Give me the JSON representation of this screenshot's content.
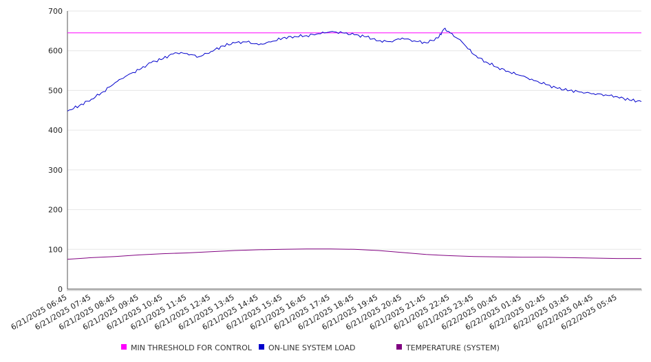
{
  "chart_data": {
    "type": "line",
    "title": "",
    "xlabel": "",
    "ylabel": "",
    "ylim": [
      0,
      700
    ],
    "yticks": [
      0,
      100,
      200,
      300,
      400,
      500,
      600,
      700
    ],
    "grid": true,
    "legend_position": "bottom",
    "x_tick_labels": [
      "6/21/2025 06:45",
      "6/21/2025 07:45",
      "6/21/2025 08:45",
      "6/21/2025 09:45",
      "6/21/2025 10:45",
      "6/21/2025 11:45",
      "6/21/2025 12:45",
      "6/21/2025 13:45",
      "6/21/2025 14:45",
      "6/21/2025 15:45",
      "6/21/2025 16:45",
      "6/21/2025 17:45",
      "6/21/2025 18:45",
      "6/21/2025 19:45",
      "6/21/2025 20:45",
      "6/21/2025 21:45",
      "6/21/2025 22:45",
      "6/21/2025 23:45",
      "6/22/2025 00:45",
      "6/22/2025 01:45",
      "6/22/2025 02:45",
      "6/22/2025 03:45",
      "6/22/2025 04:45",
      "6/22/2025 05:45"
    ],
    "series": [
      {
        "name": "MIN THRESHOLD FOR CONTROL",
        "color": "#ff00ff",
        "x": [
          "6/21/2025 06:45",
          "6/22/2025 06:45"
        ],
        "values": [
          645,
          645
        ]
      },
      {
        "name": "ON-LINE SYSTEM LOAD",
        "color": "#0000cc",
        "x": [
          "6/21/2025 06:45",
          "6/21/2025 07:15",
          "6/21/2025 07:45",
          "6/21/2025 08:15",
          "6/21/2025 08:45",
          "6/21/2025 09:15",
          "6/21/2025 09:45",
          "6/21/2025 10:15",
          "6/21/2025 10:45",
          "6/21/2025 11:15",
          "6/21/2025 11:45",
          "6/21/2025 12:15",
          "6/21/2025 12:45",
          "6/21/2025 13:15",
          "6/21/2025 13:45",
          "6/21/2025 14:15",
          "6/21/2025 14:45",
          "6/21/2025 15:15",
          "6/21/2025 15:45",
          "6/21/2025 16:15",
          "6/21/2025 16:45",
          "6/21/2025 17:15",
          "6/21/2025 17:45",
          "6/21/2025 18:15",
          "6/21/2025 18:45",
          "6/21/2025 19:15",
          "6/21/2025 19:45",
          "6/21/2025 20:15",
          "6/21/2025 20:45",
          "6/21/2025 21:15",
          "6/21/2025 21:45",
          "6/21/2025 22:15",
          "6/21/2025 22:30",
          "6/21/2025 22:45",
          "6/21/2025 23:15",
          "6/21/2025 23:45",
          "6/22/2025 00:15",
          "6/22/2025 00:45",
          "6/22/2025 01:15",
          "6/22/2025 01:45",
          "6/22/2025 02:15",
          "6/22/2025 02:45",
          "6/22/2025 03:15",
          "6/22/2025 03:45",
          "6/22/2025 04:15",
          "6/22/2025 04:45",
          "6/22/2025 05:15",
          "6/22/2025 05:45",
          "6/22/2025 06:15",
          "6/22/2025 06:45"
        ],
        "values": [
          448,
          462,
          478,
          497,
          520,
          538,
          552,
          570,
          580,
          595,
          593,
          585,
          598,
          612,
          620,
          622,
          615,
          622,
          632,
          636,
          638,
          643,
          648,
          645,
          640,
          635,
          625,
          623,
          632,
          625,
          620,
          632,
          655,
          645,
          622,
          590,
          572,
          558,
          546,
          537,
          525,
          515,
          505,
          500,
          496,
          492,
          489,
          484,
          476,
          472
        ]
      },
      {
        "name": "TEMPERATURE (SYSTEM)",
        "color": "#800080",
        "x": [
          "6/21/2025 06:45",
          "6/21/2025 07:45",
          "6/21/2025 08:45",
          "6/21/2025 09:45",
          "6/21/2025 10:45",
          "6/21/2025 11:45",
          "6/21/2025 12:45",
          "6/21/2025 13:45",
          "6/21/2025 14:45",
          "6/21/2025 15:45",
          "6/21/2025 16:45",
          "6/21/2025 17:45",
          "6/21/2025 18:45",
          "6/21/2025 19:45",
          "6/21/2025 20:45",
          "6/21/2025 21:45",
          "6/21/2025 22:45",
          "6/21/2025 23:45",
          "6/22/2025 00:45",
          "6/22/2025 01:45",
          "6/22/2025 02:45",
          "6/22/2025 03:45",
          "6/22/2025 04:45",
          "6/22/2025 05:45",
          "6/22/2025 06:45"
        ],
        "values": [
          75,
          79,
          82,
          86,
          89,
          91,
          94,
          97,
          99,
          100,
          101,
          101,
          100,
          97,
          92,
          87,
          84,
          82,
          81,
          80,
          80,
          79,
          78,
          77,
          77
        ]
      }
    ]
  }
}
